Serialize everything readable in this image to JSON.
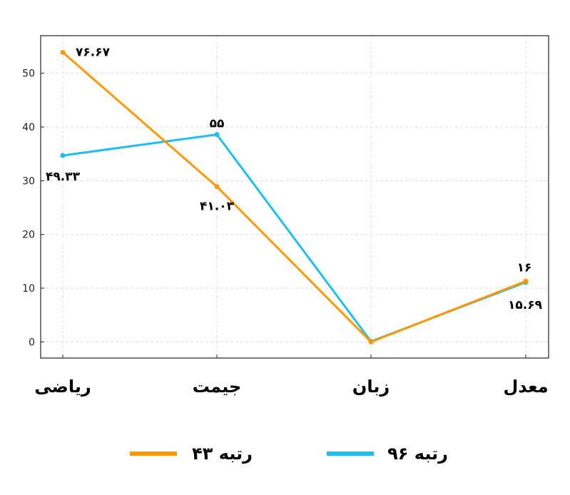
{
  "chart_data": {
    "type": "line",
    "categories": [
      "ریاضی",
      "جیمت",
      "زبان",
      "معدل"
    ],
    "ylim": [
      -3,
      57
    ],
    "yticks": [
      0,
      10,
      20,
      30,
      40,
      50
    ],
    "grid": true,
    "legend_position": "bottom",
    "series": [
      {
        "name": "رتبه ۴۳",
        "color": "#FF9900",
        "values": [
          53.9,
          28.9,
          0,
          11.3
        ],
        "labels": [
          "۷۶.۶۷",
          "۴۱.۰۳",
          "",
          "۱۶"
        ]
      },
      {
        "name": "رتبه ۹۶",
        "color": "#1EBFEA",
        "values": [
          34.7,
          38.6,
          0.1,
          11.1
        ],
        "labels": [
          "۴۹.۳۳",
          "۵۵",
          "",
          "۱۵.۶۹"
        ]
      }
    ]
  }
}
